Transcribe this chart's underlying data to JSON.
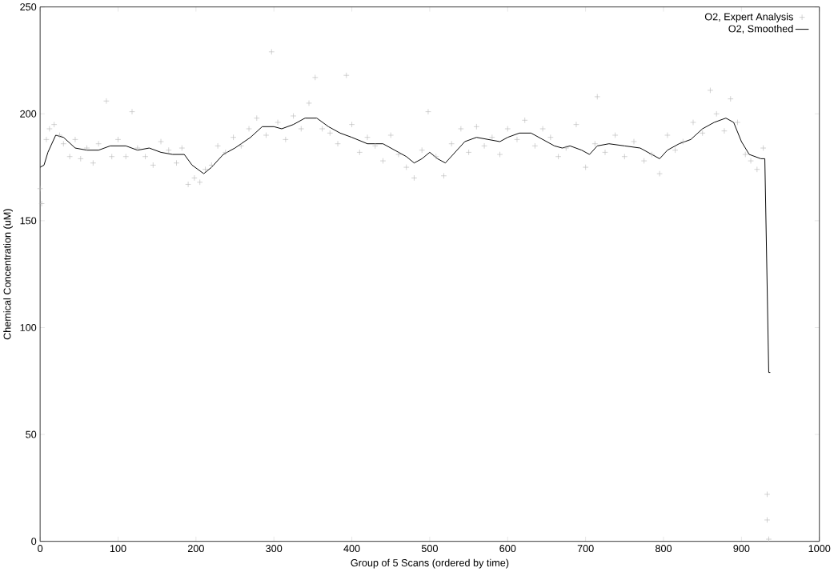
{
  "chart_data": {
    "type": "scatter",
    "xlabel": "Group of 5 Scans (ordered by time)",
    "ylabel": "Chemical Concentration (uM)",
    "xlim": [
      0,
      1000
    ],
    "ylim": [
      0,
      250
    ],
    "xticks": [
      0,
      100,
      200,
      300,
      400,
      500,
      600,
      700,
      800,
      900,
      1000
    ],
    "yticks": [
      0,
      50,
      100,
      150,
      200,
      250
    ],
    "legend": "top right",
    "grid": false,
    "series": [
      {
        "name": "O2, Expert Analysis",
        "marker": "cross",
        "color": "#b4b4b4",
        "x": [
          0,
          2,
          8,
          12,
          18,
          25,
          30,
          38,
          45,
          52,
          60,
          68,
          75,
          85,
          92,
          100,
          110,
          118,
          125,
          135,
          145,
          155,
          165,
          175,
          182,
          190,
          198,
          205,
          212,
          220,
          228,
          238,
          248,
          258,
          268,
          278,
          290,
          297,
          305,
          315,
          325,
          335,
          345,
          353,
          362,
          372,
          382,
          393,
          400,
          410,
          420,
          430,
          440,
          450,
          460,
          470,
          480,
          490,
          498,
          508,
          518,
          528,
          540,
          550,
          560,
          570,
          580,
          590,
          600,
          612,
          622,
          635,
          645,
          655,
          665,
          675,
          688,
          700,
          712,
          715,
          725,
          738,
          750,
          762,
          775,
          785,
          795,
          805,
          815,
          825,
          838,
          850,
          860,
          868,
          878,
          886,
          895,
          905,
          912,
          920,
          928,
          933,
          933,
          935
        ],
        "values": [
          165,
          158,
          188,
          193,
          195,
          190,
          186,
          180,
          188,
          179,
          184,
          177,
          186,
          206,
          180,
          188,
          180,
          201,
          184,
          180,
          176,
          187,
          183,
          177,
          184,
          167,
          170,
          168,
          174,
          176,
          185,
          182,
          189,
          185,
          193,
          198,
          190,
          229,
          196,
          188,
          199,
          193,
          205,
          217,
          193,
          191,
          186,
          218,
          195,
          182,
          189,
          185,
          178,
          190,
          181,
          175,
          170,
          183,
          201,
          180,
          171,
          186,
          193,
          182,
          194,
          185,
          189,
          181,
          193,
          188,
          197,
          185,
          193,
          189,
          180,
          184,
          195,
          175,
          186,
          208,
          182,
          190,
          180,
          187,
          178,
          181,
          172,
          190,
          183,
          187,
          196,
          191,
          211,
          200,
          192,
          207,
          196,
          181,
          178,
          174,
          184,
          22,
          10,
          1
        ]
      },
      {
        "name": "O2, Smoothed",
        "type": "line",
        "marker": "none",
        "color": "#000000",
        "x": [
          0,
          5,
          10,
          20,
          30,
          45,
          60,
          75,
          90,
          110,
          125,
          140,
          155,
          170,
          185,
          195,
          210,
          220,
          235,
          250,
          270,
          285,
          300,
          310,
          325,
          340,
          355,
          370,
          385,
          400,
          420,
          440,
          455,
          470,
          480,
          490,
          500,
          510,
          520,
          530,
          545,
          560,
          575,
          590,
          600,
          615,
          630,
          645,
          660,
          670,
          680,
          695,
          705,
          715,
          730,
          750,
          770,
          785,
          795,
          805,
          820,
          835,
          850,
          865,
          880,
          890,
          900,
          910,
          925,
          930,
          935,
          937
        ],
        "values": [
          175,
          176,
          182,
          190,
          189,
          184,
          183,
          183,
          185,
          185,
          183,
          184,
          182,
          181,
          181,
          176,
          172,
          175,
          181,
          184,
          189,
          194,
          194,
          193,
          195,
          198,
          198,
          194,
          191,
          189,
          186,
          186,
          183,
          180,
          177,
          179,
          182,
          179,
          177,
          181,
          187,
          189,
          188,
          187,
          189,
          191,
          191,
          188,
          185,
          184,
          185,
          183,
          181,
          185,
          186,
          185,
          184,
          181,
          179,
          183,
          186,
          188,
          193,
          196,
          198,
          196,
          187,
          181,
          179,
          179,
          79,
          79
        ]
      }
    ]
  }
}
